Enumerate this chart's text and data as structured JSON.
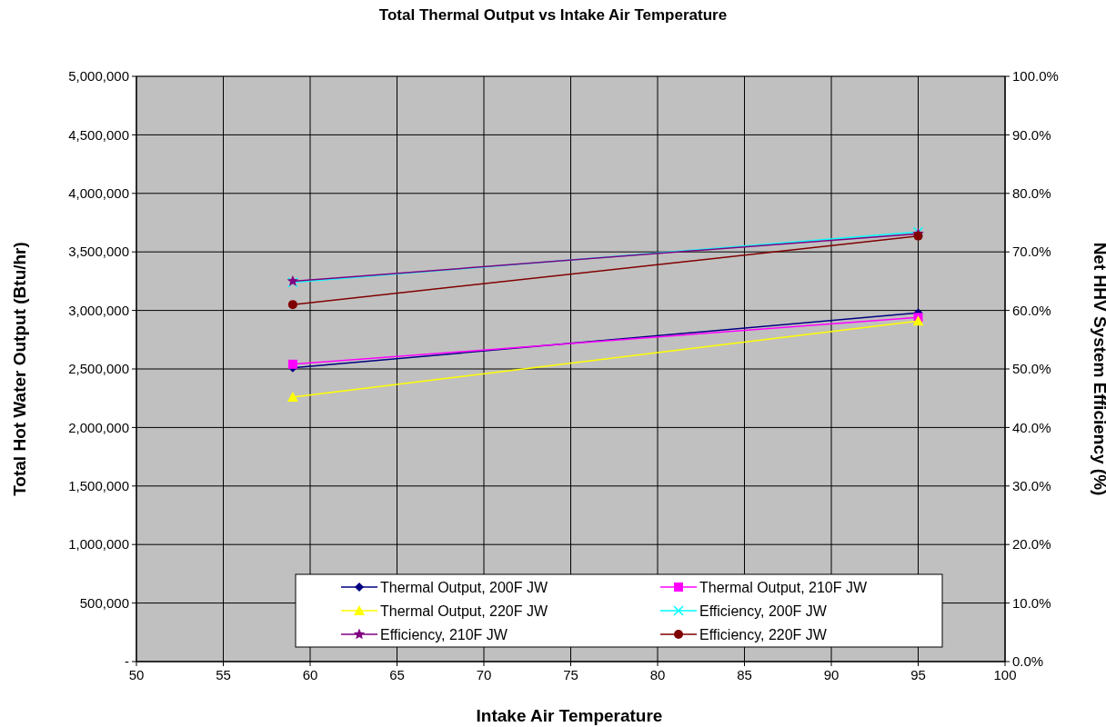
{
  "chart_data": {
    "type": "line",
    "title": "Total Thermal Output vs Intake Air Temperature",
    "xlabel": "Intake Air Temperature",
    "ylabel": "Total Hot Water Output (Btu/hr)",
    "y2label": "Net HHV System Efficiency (%)",
    "x": [
      59,
      95
    ],
    "xlim": [
      50,
      100
    ],
    "xticks": [
      50,
      55,
      60,
      65,
      70,
      75,
      80,
      85,
      90,
      95,
      100
    ],
    "ylim": [
      0,
      5000000
    ],
    "yticks": [
      {
        "value": 0,
        "label": "-"
      },
      {
        "value": 500000,
        "label": "500,000"
      },
      {
        "value": 1000000,
        "label": "1,000,000"
      },
      {
        "value": 1500000,
        "label": "1,500,000"
      },
      {
        "value": 2000000,
        "label": "2,000,000"
      },
      {
        "value": 2500000,
        "label": "2,500,000"
      },
      {
        "value": 3000000,
        "label": "3,000,000"
      },
      {
        "value": 3500000,
        "label": "3,500,000"
      },
      {
        "value": 4000000,
        "label": "4,000,000"
      },
      {
        "value": 4500000,
        "label": "4,500,000"
      },
      {
        "value": 5000000,
        "label": "5,000,000"
      }
    ],
    "y2lim": [
      0,
      100
    ],
    "y2ticks": [
      {
        "value": 0,
        "label": "0.0%"
      },
      {
        "value": 10,
        "label": "10.0%"
      },
      {
        "value": 20,
        "label": "20.0%"
      },
      {
        "value": 30,
        "label": "30.0%"
      },
      {
        "value": 40,
        "label": "40.0%"
      },
      {
        "value": 50,
        "label": "50.0%"
      },
      {
        "value": 60,
        "label": "60.0%"
      },
      {
        "value": 70,
        "label": "70.0%"
      },
      {
        "value": 80,
        "label": "80.0%"
      },
      {
        "value": 90,
        "label": "90.0%"
      },
      {
        "value": 100,
        "label": "100.0%"
      }
    ],
    "grid": true,
    "legend": "bottom",
    "series": [
      {
        "name": "Thermal Output, 200F JW",
        "color": "#000080",
        "marker": "diamond",
        "values": [
          2510000,
          2980000
        ]
      },
      {
        "name": "Thermal Output, 210F JW",
        "color": "#ff00ff",
        "marker": "square",
        "values": [
          2540000,
          2940000
        ]
      },
      {
        "name": "Thermal Output, 220F JW",
        "color": "#ffff00",
        "marker": "triangle",
        "values": [
          2260000,
          2910000
        ]
      },
      {
        "name": "Efficiency, 200F JW",
        "color": "#00ffff",
        "marker": "cross",
        "axis": "y2",
        "values": [
          64.8,
          73.4
        ]
      },
      {
        "name": "Efficiency, 210F JW",
        "color": "#800080",
        "marker": "star",
        "axis": "y2",
        "values": [
          65.0,
          73.1
        ]
      },
      {
        "name": "Efficiency, 220F JW",
        "color": "#800000",
        "marker": "circle",
        "axis": "y2",
        "values": [
          61.0,
          72.7
        ]
      }
    ]
  }
}
